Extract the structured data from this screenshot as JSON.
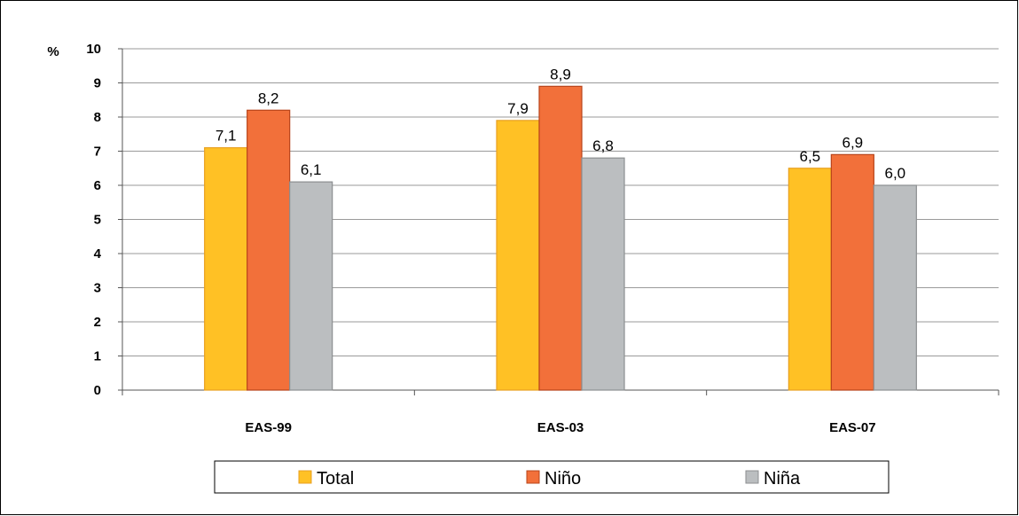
{
  "chart_data": {
    "type": "bar",
    "ylabel": "%",
    "ylim": [
      0,
      10
    ],
    "yticks": [
      0,
      1,
      2,
      3,
      4,
      5,
      6,
      7,
      8,
      9,
      10
    ],
    "categories": [
      "EAS-99",
      "EAS-03",
      "EAS-07"
    ],
    "series": [
      {
        "name": "Total",
        "values": [
          7.1,
          7.9,
          6.5
        ],
        "labels": [
          "7,1",
          "7,9",
          "6,5"
        ],
        "color": "#FFC125",
        "stroke": "#E8A020"
      },
      {
        "name": "Niño",
        "values": [
          8.2,
          8.9,
          6.9
        ],
        "labels": [
          "8,2",
          "8,9",
          "6,9"
        ],
        "color": "#F2703A",
        "stroke": "#B8441A"
      },
      {
        "name": "Niña",
        "values": [
          6.1,
          6.8,
          6.0
        ],
        "labels": [
          "6,1",
          "6,8",
          "6,0"
        ],
        "color": "#BBBEC0",
        "stroke": "#8C8F91"
      }
    ],
    "grid": true,
    "legend": "bottom"
  }
}
